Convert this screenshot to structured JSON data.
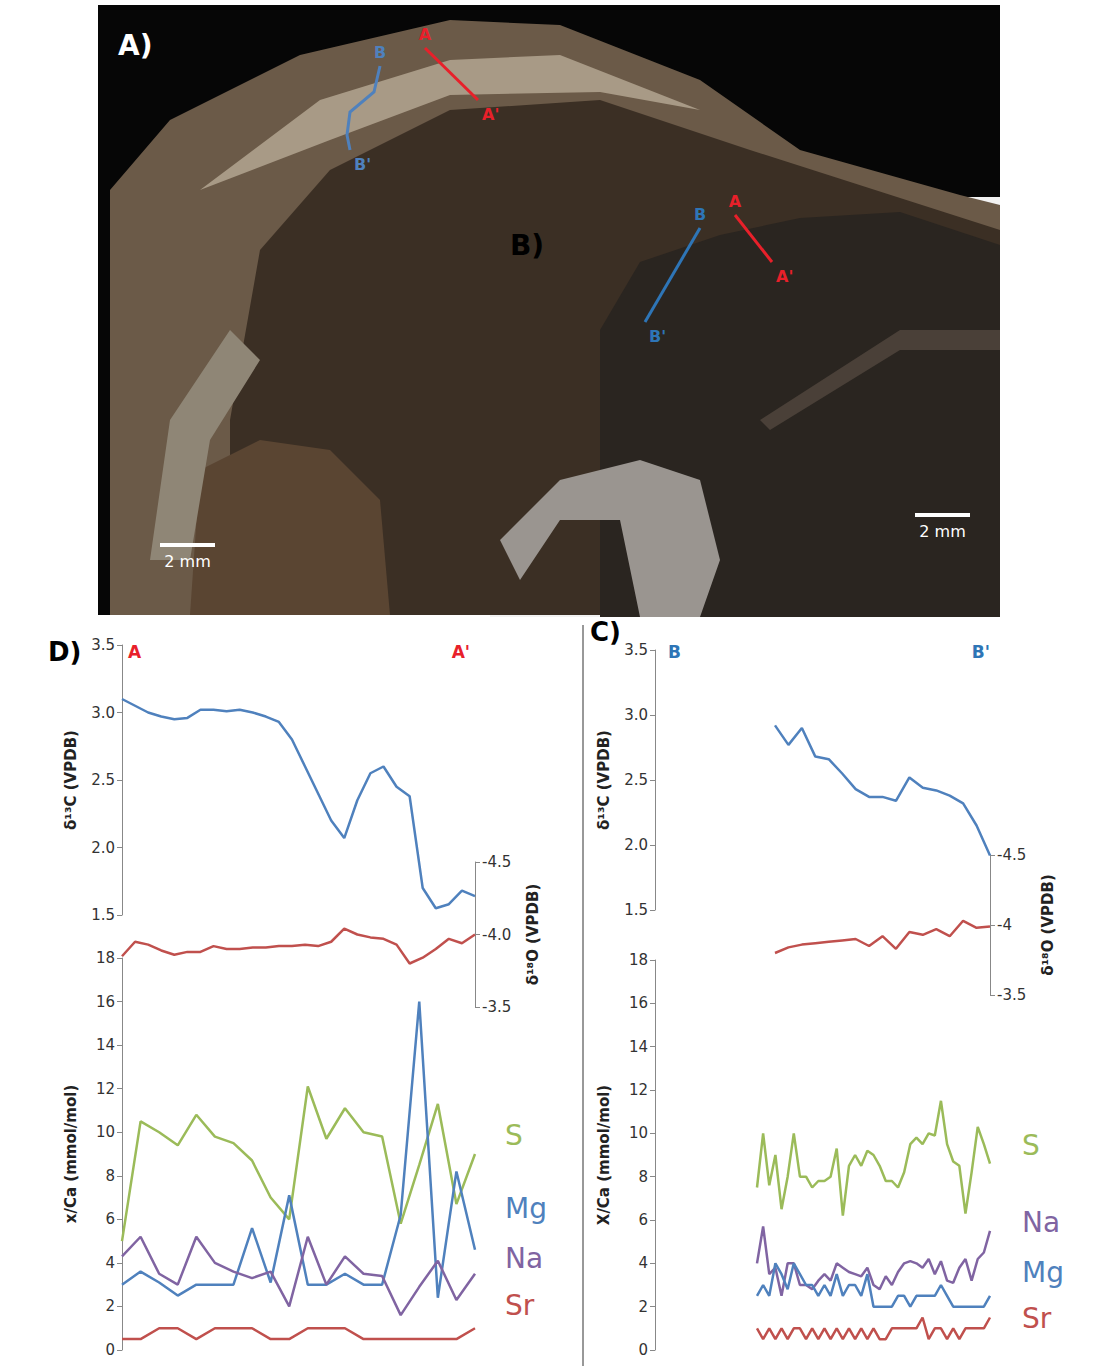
{
  "photos": [
    {
      "label": "A)",
      "scale_bar": "2 mm",
      "transects": [
        {
          "start": "A",
          "end": "A'",
          "color": "#e8202a"
        },
        {
          "start": "B",
          "end": "B'",
          "color": "#4f81bd"
        }
      ]
    },
    {
      "label": "B)",
      "scale_bar": "2 mm",
      "transects": [
        {
          "start": "B",
          "end": "B'",
          "color": "#2e75b6"
        },
        {
          "start": "A",
          "end": "A'",
          "color": "#e8202a"
        }
      ]
    }
  ],
  "chart_data": [
    {
      "type": "line",
      "title": "D)",
      "annotations": [
        {
          "text": "A",
          "color": "#e8202a"
        },
        {
          "text": "A'",
          "color": "#e8202a"
        }
      ],
      "subplots": [
        {
          "ylabel": "δ¹³C (VPDB)",
          "ylim": [
            1.5,
            3.5
          ],
          "yticks": [
            1.5,
            {
              "value": 2,
              "label": "2.0"
            },
            2.5,
            {
              "value": 3,
              "label": "3.0"
            },
            3.5
          ],
          "tick_labels": "y",
          "grid": false,
          "categories": [
            null,
            null,
            null,
            null,
            null,
            null,
            null,
            null,
            null,
            null,
            null,
            null,
            null,
            null,
            null,
            null,
            null,
            null,
            null,
            null,
            null,
            null,
            null,
            null,
            null,
            null,
            null,
            null
          ],
          "series": [
            {
              "color": "#4f81bd",
              "values": [
                3.1,
                3.05,
                3.0,
                2.97,
                2.95,
                2.96,
                3.02,
                3.02,
                3.01,
                3.02,
                3.0,
                2.97,
                2.93,
                2.8,
                2.6,
                2.4,
                2.2,
                2.07,
                2.35,
                2.55,
                2.6,
                2.45,
                2.38,
                1.7,
                1.55,
                1.58,
                1.68,
                1.64
              ]
            }
          ]
        },
        {
          "ylabel": "δ¹⁸O (VPDB)",
          "ylim": [
            -3.5,
            -4.5
          ],
          "yticks": [
            -4.5,
            {
              "value": -4,
              "label": "-4.0"
            },
            -3.5
          ],
          "tick_labels": "y",
          "grid": false,
          "categories": [
            null,
            null,
            null,
            null,
            null,
            null,
            null,
            null,
            null,
            null,
            null,
            null,
            null,
            null,
            null,
            null,
            null,
            null,
            null,
            null,
            null,
            null,
            null,
            null,
            null,
            null,
            null,
            null
          ],
          "series": [
            {
              "color": "#c0504d",
              "values": [
                -3.85,
                -3.95,
                -3.93,
                -3.89,
                -3.86,
                -3.88,
                -3.88,
                -3.92,
                -3.9,
                -3.9,
                -3.91,
                -3.91,
                -3.92,
                -3.92,
                -3.93,
                -3.92,
                -3.95,
                -4.04,
                -4.0,
                -3.98,
                -3.97,
                -3.93,
                -3.8,
                -3.84,
                -3.9,
                -3.97,
                -3.94,
                -4.0
              ]
            }
          ]
        },
        {
          "ylabel": "x/Ca (mmol/mol)",
          "ylim": [
            0,
            18
          ],
          "yticks": [
            0,
            2,
            4,
            6,
            8,
            10,
            12,
            14,
            16,
            18
          ],
          "tick_labels": "y",
          "grid": false,
          "categories": [
            null,
            null,
            null,
            null,
            null,
            null,
            null,
            null,
            null,
            null,
            null,
            null,
            null,
            null,
            null,
            null,
            null,
            null,
            null,
            null
          ],
          "series": [
            {
              "name": "S",
              "color": "#9bbb59",
              "values": [
                5,
                10.5,
                10,
                9.4,
                10.8,
                9.8,
                9.5,
                8.7,
                7,
                6,
                12.1,
                9.7,
                11.1,
                10,
                9.8,
                5.8,
                8.5,
                11.3,
                6.7,
                9
              ]
            },
            {
              "name": "Mg",
              "color": "#4f81bd",
              "values": [
                3,
                3.6,
                3.1,
                2.5,
                3,
                3,
                3,
                5.6,
                3.1,
                7.1,
                3,
                3,
                3.5,
                3,
                3,
                6.2,
                16,
                2.4,
                8.2,
                4.6
              ]
            },
            {
              "name": "Na",
              "color": "#8064a2",
              "values": [
                4.3,
                5.2,
                3.5,
                3,
                5.2,
                4,
                3.6,
                3.3,
                3.6,
                2,
                5.2,
                3,
                4.3,
                3.5,
                3.4,
                1.6,
                2.9,
                4.1,
                2.3,
                3.5
              ]
            },
            {
              "name": "Sr",
              "color": "#c0504d",
              "values": [
                0.5,
                0.5,
                1,
                1,
                0.5,
                1,
                1,
                1,
                0.5,
                0.5,
                1,
                1,
                1,
                0.5,
                0.5,
                0.5,
                0.5,
                0.5,
                0.5,
                1
              ]
            }
          ]
        }
      ]
    },
    {
      "type": "line",
      "title": "C)",
      "annotations": [
        {
          "text": "B",
          "color": "#2e75b6"
        },
        {
          "text": "B'",
          "color": "#2e75b6"
        }
      ],
      "subplots": [
        {
          "ylabel": "δ¹³C (VPDB)",
          "ylim": [
            1.5,
            3.5
          ],
          "yticks": [
            1.5,
            {
              "value": 2,
              "label": "2.0"
            },
            2.5,
            {
              "value": 3,
              "label": "3.0"
            },
            3.5
          ],
          "tick_labels": "y",
          "grid": false,
          "categories": [
            null,
            null,
            null,
            null,
            null,
            null,
            null,
            null,
            null,
            null,
            null,
            null,
            null,
            null,
            null,
            null,
            null
          ],
          "series": [
            {
              "color": "#4f81bd",
              "values": [
                2.92,
                2.77,
                2.9,
                2.68,
                2.66,
                2.55,
                2.43,
                2.37,
                2.37,
                2.34,
                2.52,
                2.44,
                2.42,
                2.38,
                2.32,
                2.15,
                1.92
              ]
            }
          ]
        },
        {
          "ylabel": "δ¹⁸O (VPDB)",
          "ylim": [
            -3.5,
            -4.5
          ],
          "yticks": [
            -4.5,
            -4,
            -3.5
          ],
          "tick_labels": "y",
          "grid": false,
          "categories": [
            null,
            null,
            null,
            null,
            null,
            null,
            null,
            null,
            null,
            null,
            null,
            null,
            null,
            null,
            null,
            null,
            null
          ],
          "series": [
            {
              "color": "#c0504d",
              "values": [
                -3.8,
                -3.84,
                -3.86,
                -3.87,
                -3.88,
                -3.89,
                -3.9,
                -3.85,
                -3.92,
                -3.83,
                -3.95,
                -3.93,
                -3.97,
                -3.92,
                -4.03,
                -3.98,
                -3.99
              ]
            }
          ]
        },
        {
          "ylabel": "X/Ca (mmol/mol)",
          "ylim": [
            0,
            18
          ],
          "yticks": [
            0,
            2,
            4,
            6,
            8,
            10,
            12,
            14,
            16,
            18
          ],
          "tick_labels": "y",
          "grid": false,
          "categories": [
            null,
            null,
            null,
            null,
            null,
            null,
            null,
            null,
            null,
            null,
            null,
            null,
            null,
            null,
            null,
            null,
            null,
            null,
            null,
            null,
            null,
            null,
            null,
            null,
            null,
            null,
            null,
            null,
            null,
            null,
            null,
            null,
            null,
            null,
            null,
            null,
            null,
            null,
            null
          ],
          "series": [
            {
              "name": "S",
              "color": "#9bbb59",
              "values": [
                7.5,
                10,
                7.6,
                9,
                6.5,
                8,
                10,
                8,
                8,
                7.5,
                7.8,
                7.8,
                8,
                9.3,
                6.2,
                8.5,
                9,
                8.5,
                9.2,
                9,
                8.5,
                7.8,
                7.8,
                7.5,
                8.2,
                9.5,
                9.8,
                9.5,
                10,
                9.9,
                11.5,
                9.5,
                8.7,
                8.5,
                6.3,
                8.2,
                10.3,
                9.5,
                8.6
              ]
            },
            {
              "name": "Na",
              "color": "#8064a2",
              "values": [
                4,
                5.7,
                3.5,
                3.8,
                2.5,
                4,
                4,
                3,
                3,
                2.8,
                3.2,
                3.5,
                3.2,
                4,
                3.8,
                3.6,
                3.5,
                3.4,
                3.8,
                3,
                2.8,
                3.4,
                3,
                3.6,
                4,
                4.1,
                4,
                3.8,
                4.2,
                3.5,
                4.1,
                3.2,
                3.1,
                3.8,
                4.2,
                3.2,
                4.2,
                4.5,
                5.5
              ]
            },
            {
              "name": "Mg",
              "color": "#4f81bd",
              "values": [
                2.5,
                3,
                2.5,
                4,
                3.5,
                2.8,
                4,
                3.5,
                3,
                3,
                2.5,
                3,
                2.5,
                3.5,
                2.5,
                3,
                3,
                2.5,
                3.5,
                2,
                2,
                2,
                2,
                2.5,
                2.5,
                2,
                2.5,
                2.5,
                2.5,
                2.5,
                3,
                2.5,
                2,
                2,
                2,
                2,
                2,
                2,
                2.5
              ]
            },
            {
              "name": "Sr",
              "color": "#c0504d",
              "values": [
                1,
                0.5,
                1,
                0.5,
                1,
                0.5,
                1,
                1,
                0.5,
                1,
                0.5,
                1,
                0.5,
                1,
                0.5,
                1,
                0.5,
                1,
                0.5,
                1,
                0.5,
                0.5,
                1,
                1,
                1,
                1,
                1,
                1.5,
                0.5,
                1,
                1,
                0.5,
                1,
                0.5,
                1,
                1,
                1,
                1,
                1.5
              ]
            }
          ]
        }
      ]
    }
  ]
}
